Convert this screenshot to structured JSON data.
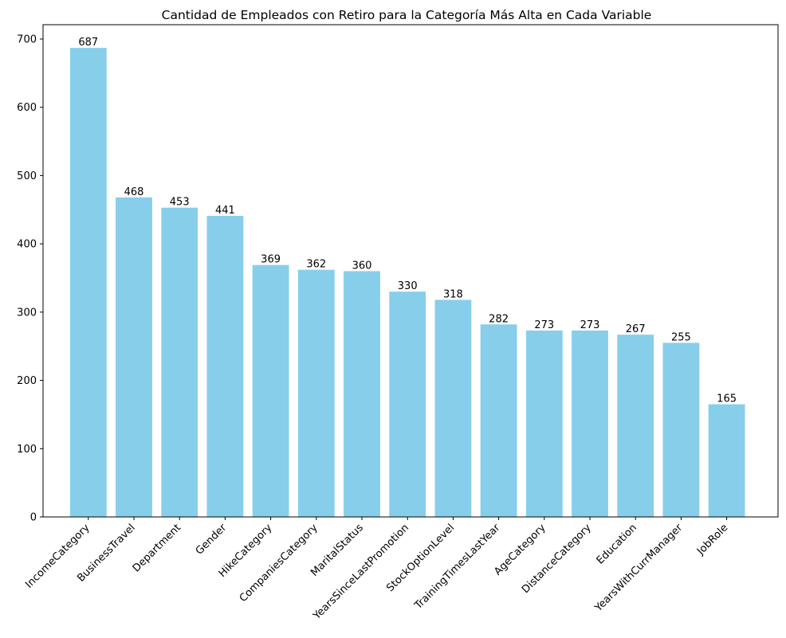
{
  "chart_data": {
    "type": "bar",
    "title": "Cantidad de Empleados con Retiro para la Categoría Más Alta en Cada Variable",
    "xlabel": "",
    "ylabel": "",
    "categories": [
      "IncomeCategory",
      "BusinessTravel",
      "Department",
      "Gender",
      "HikeCategory",
      "CompaniesCategory",
      "MaritalStatus",
      "YearsSinceLastPromotion",
      "StockOptionLevel",
      "TrainingTimesLastYear",
      "AgeCategory",
      "DistanceCategory",
      "Education",
      "YearsWithCurrManager",
      "JobRole"
    ],
    "values": [
      687,
      468,
      453,
      441,
      369,
      362,
      360,
      330,
      318,
      282,
      273,
      273,
      267,
      255,
      165
    ],
    "ylim": [
      0,
      721
    ],
    "yticks": [
      0,
      100,
      200,
      300,
      400,
      500,
      600,
      700
    ],
    "bar_color": "#87CEEB",
    "grid": false,
    "legend": "none"
  }
}
